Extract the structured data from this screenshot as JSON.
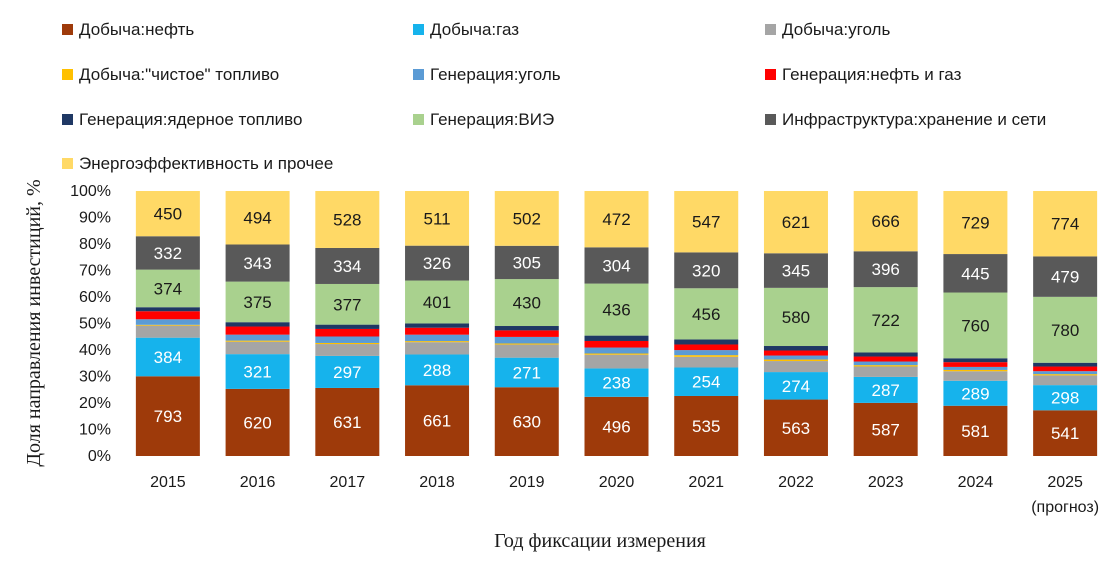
{
  "chart_data": {
    "type": "bar",
    "stacked": "percent",
    "xlabel": "Год фиксации измерения",
    "ylabel": "Доля  направления инвестиций, %",
    "ylim": [
      0,
      100
    ],
    "yticks": [
      "0%",
      "10%",
      "20%",
      "30%",
      "40%",
      "50%",
      "60%",
      "70%",
      "80%",
      "90%",
      "100%"
    ],
    "categories": [
      {
        "label": "2015",
        "sub": ""
      },
      {
        "label": "2016",
        "sub": ""
      },
      {
        "label": "2017",
        "sub": ""
      },
      {
        "label": "2018",
        "sub": ""
      },
      {
        "label": "2019",
        "sub": ""
      },
      {
        "label": "2020",
        "sub": ""
      },
      {
        "label": "2021",
        "sub": ""
      },
      {
        "label": "2022",
        "sub": ""
      },
      {
        "label": "2023",
        "sub": ""
      },
      {
        "label": "2024",
        "sub": ""
      },
      {
        "label": "2025",
        "sub": "(прогноз)"
      }
    ],
    "series": [
      {
        "name": "Добыча:нефть",
        "color": "#9E3A0A",
        "label_color": "#ffffff",
        "show_labels": true,
        "values": [
          793,
          620,
          631,
          661,
          630,
          496,
          535,
          563,
          587,
          581,
          541
        ]
      },
      {
        "name": "Добыча:газ",
        "color": "#16B3EC",
        "label_color": "#ffffff",
        "show_labels": true,
        "values": [
          384,
          321,
          297,
          288,
          271,
          238,
          254,
          274,
          287,
          289,
          298
        ]
      },
      {
        "name": "Добыча:уголь",
        "color": "#A5A5A5",
        "label_color": "#1a1a1a",
        "show_labels": false,
        "values": [
          120,
          115,
          110,
          115,
          120,
          115,
          95,
          110,
          115,
          110,
          115
        ]
      },
      {
        "name": "Добыча:\"чистое\" топливо",
        "color": "#FFC000",
        "label_color": "#1a1a1a",
        "show_labels": false,
        "values": [
          8,
          10,
          10,
          10,
          10,
          10,
          15,
          15,
          15,
          15,
          15
        ]
      },
      {
        "name": "Генерация:уголь",
        "color": "#5B9BD5",
        "label_color": "#1a1a1a",
        "show_labels": false,
        "values": [
          55,
          55,
          60,
          60,
          60,
          50,
          45,
          40,
          40,
          35,
          35
        ]
      },
      {
        "name": "Генерация:нефть и газ",
        "color": "#FF0000",
        "label_color": "#1a1a1a",
        "show_labels": false,
        "values": [
          80,
          75,
          70,
          65,
          60,
          55,
          50,
          50,
          55,
          55,
          55
        ]
      },
      {
        "name": "Генерация:ядерное топливо",
        "color": "#1F3864",
        "label_color": "#1a1a1a",
        "show_labels": false,
        "values": [
          40,
          40,
          40,
          40,
          40,
          45,
          45,
          45,
          45,
          45,
          45
        ]
      },
      {
        "name": "Генерация:ВИЭ",
        "color": "#A9D18E",
        "label_color": "#1a1a1a",
        "show_labels": true,
        "values": [
          374,
          375,
          377,
          401,
          430,
          436,
          456,
          580,
          722,
          760,
          780
        ]
      },
      {
        "name": "Инфраструктура:хранение и сети",
        "color": "#595959",
        "label_color": "#ffffff",
        "show_labels": true,
        "values": [
          332,
          343,
          334,
          326,
          305,
          304,
          320,
          345,
          396,
          445,
          479
        ]
      },
      {
        "name": "Энергоэффективность и прочее",
        "color": "#FFD966",
        "label_color": "#1a1a1a",
        "show_labels": true,
        "values": [
          450,
          494,
          528,
          511,
          502,
          472,
          547,
          621,
          666,
          729,
          774
        ]
      }
    ],
    "legend_position": "top"
  }
}
